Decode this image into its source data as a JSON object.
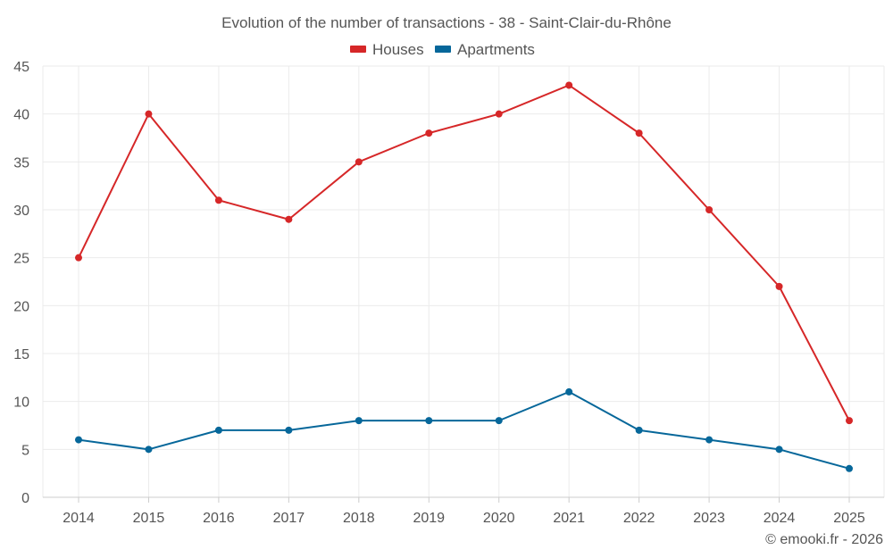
{
  "chart_data": {
    "type": "line",
    "title": "Evolution of the number of transactions - 38 - Saint-Clair-du-Rhône",
    "categories": [
      "2014",
      "2015",
      "2016",
      "2017",
      "2018",
      "2019",
      "2020",
      "2021",
      "2022",
      "2023",
      "2024",
      "2025"
    ],
    "series": [
      {
        "name": "Houses",
        "color": "#d62728",
        "values": [
          25,
          40,
          31,
          29,
          35,
          38,
          40,
          43,
          38,
          30,
          22,
          8
        ]
      },
      {
        "name": "Apartments",
        "color": "#06679a",
        "values": [
          6,
          5,
          7,
          7,
          8,
          8,
          8,
          11,
          7,
          6,
          5,
          3
        ]
      }
    ],
    "yticks": [
      "0",
      "5",
      "10",
      "15",
      "20",
      "25",
      "30",
      "35",
      "40",
      "45"
    ],
    "ylim": [
      0,
      45
    ],
    "xlabel": "",
    "ylabel": "",
    "grid": true,
    "legend_position": "top-center"
  },
  "credit": "© emooki.fr - 2026"
}
